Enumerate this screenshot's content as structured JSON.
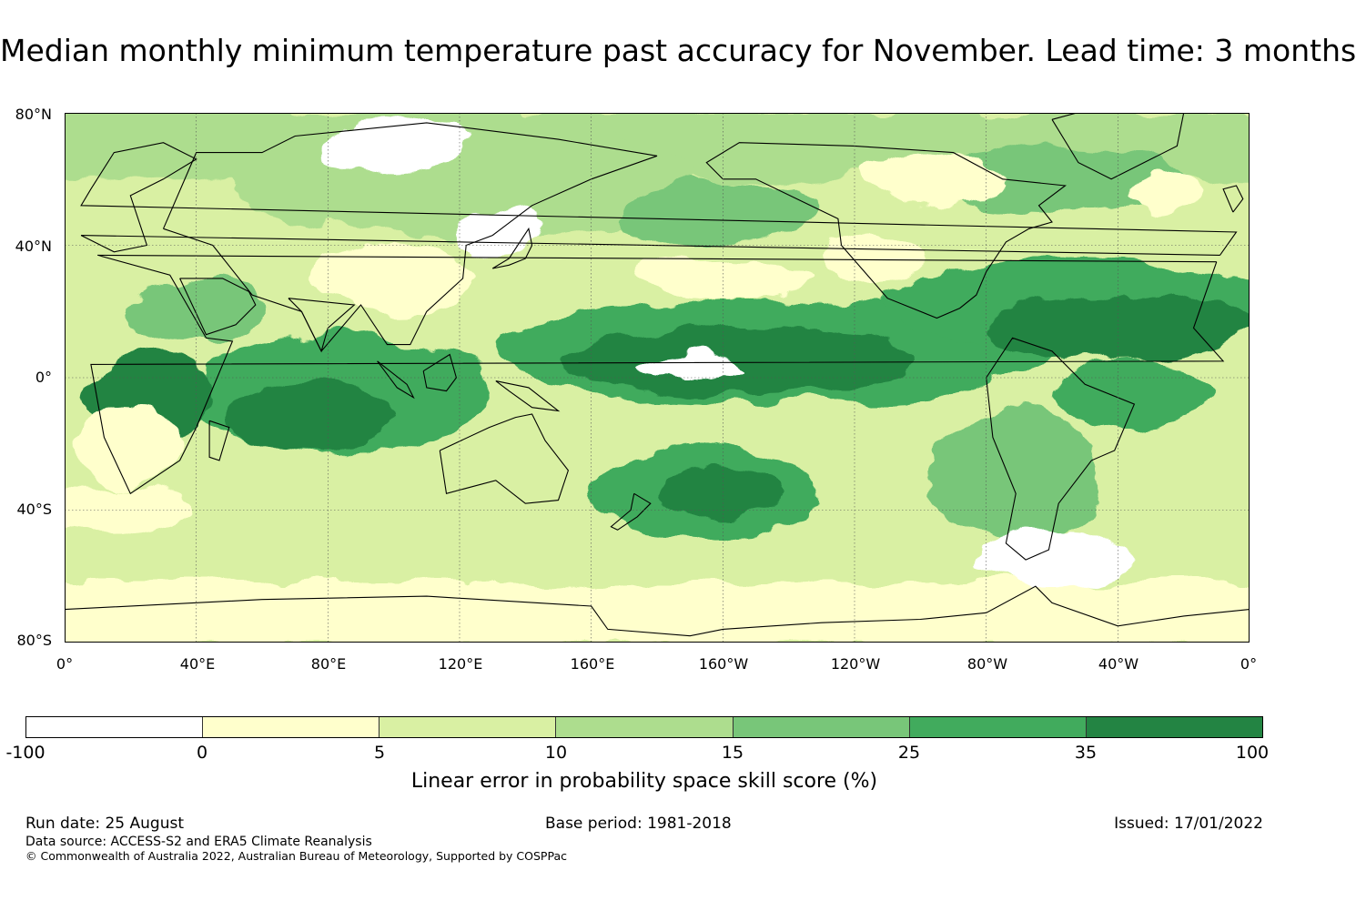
{
  "title": "Median monthly minimum temperature past accuracy for November. Lead time: 3 months",
  "map": {
    "lat_ticks": [
      "80°N",
      "40°N",
      "0°",
      "40°S",
      "80°S"
    ],
    "lon_ticks": [
      "0°",
      "40°E",
      "80°E",
      "120°E",
      "160°E",
      "160°W",
      "120°W",
      "80°W",
      "40°W",
      "0°"
    ],
    "projection": "equirectangular, 0° to 360°",
    "grid": "dotted"
  },
  "colorbar": {
    "ticks": [
      "-100",
      "0",
      "5",
      "10",
      "15",
      "25",
      "35",
      "100"
    ],
    "colors": [
      "#ffffff",
      "#ffffcc",
      "#d9f0a3",
      "#addd8e",
      "#78c679",
      "#41ab5d",
      "#238443"
    ],
    "label": "Linear error in probability space skill score (%)"
  },
  "footer": {
    "run_date": "Run date: 25 August",
    "base_period": "Base period: 1981-2018",
    "issued": "Issued: 17/01/2022",
    "data_source": "Data source: ACCESS-S2 and ERA5 Climate Reanalysis",
    "copyright": "© Commonwealth of Australia 2022, Australian Bureau of Meteorology, Supported by COSPPac"
  }
}
